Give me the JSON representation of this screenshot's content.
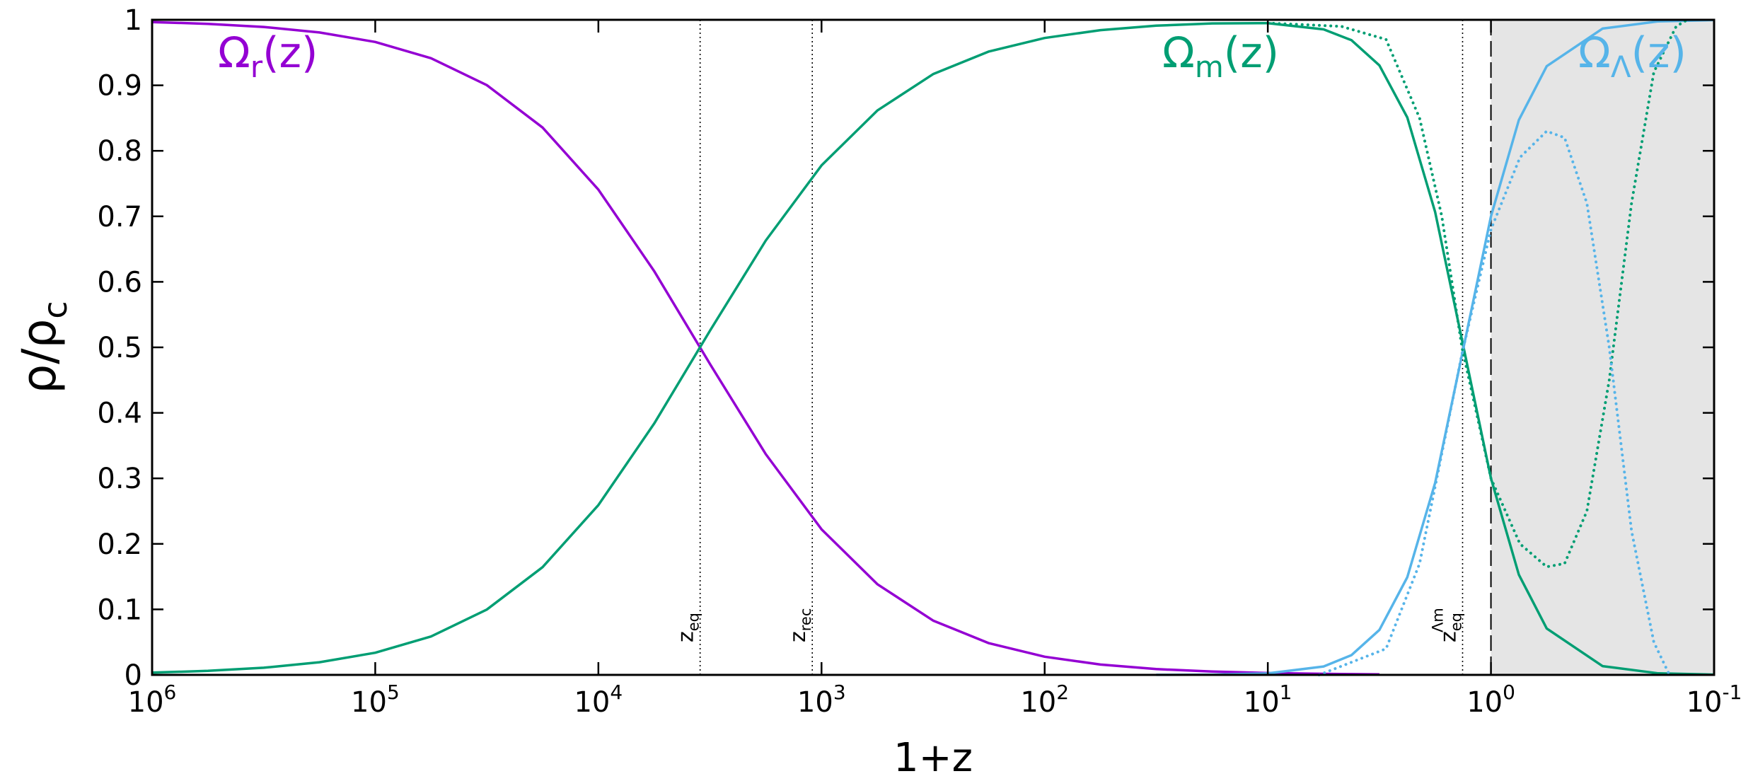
{
  "chart_data": {
    "type": "line",
    "x_label": "1+z",
    "y_label": {
      "main": "ρ/ρ",
      "sub": "c"
    },
    "xscale": "log",
    "xlim": [
      1000000,
      0.1
    ],
    "ylim": [
      0,
      1
    ],
    "xticks": [
      {
        "value": 1000000,
        "label": "10",
        "exp": "6"
      },
      {
        "value": 100000,
        "label": "10",
        "exp": "5"
      },
      {
        "value": 10000,
        "label": "10",
        "exp": "4"
      },
      {
        "value": 1000,
        "label": "10",
        "exp": "3"
      },
      {
        "value": 100,
        "label": "10",
        "exp": "2"
      },
      {
        "value": 10,
        "label": "10",
        "exp": "1"
      },
      {
        "value": 1,
        "label": "10",
        "exp": "0"
      },
      {
        "value": 0.1,
        "label": "10",
        "exp": "-1"
      }
    ],
    "yticks": [
      0,
      0.1,
      0.2,
      0.3,
      0.4,
      0.5,
      0.6,
      0.7,
      0.8,
      0.9,
      1
    ],
    "shade": [
      1,
      0.1
    ],
    "dashed_lines": [
      1
    ],
    "markers": [
      {
        "x": 3500,
        "label": "z",
        "sub": "eq"
      },
      {
        "x": 1100,
        "label": "z",
        "sub": "rec"
      },
      {
        "x": 1.34,
        "label": "z",
        "sub": "eq",
        "sup": "Λm"
      }
    ],
    "series": [
      {
        "label": {
          "main": "Ω",
          "sub": "r",
          "suffix": "(z)"
        },
        "color": "#9400d3",
        "style": "solid",
        "x": [
          1000000,
          562341,
          316228,
          177828,
          100000,
          56234,
          31623,
          17783,
          10000,
          5623,
          3162,
          1778,
          1000,
          562.3,
          316.2,
          177.8,
          100,
          56.23,
          31.62,
          17.78,
          10,
          5.623,
          4.217,
          3.162
        ],
        "values": [
          0.9965,
          0.9938,
          0.9891,
          0.9807,
          0.9662,
          0.9414,
          0.9003,
          0.8355,
          0.7407,
          0.6164,
          0.4746,
          0.3369,
          0.2222,
          0.1384,
          0.0829,
          0.0484,
          0.0278,
          0.0158,
          0.0089,
          0.0051,
          0.0028,
          0.0016,
          0.0012,
          0.0008
        ]
      },
      {
        "label": {
          "main": "Ω",
          "sub": "m",
          "suffix": "(z)"
        },
        "color": "#009e73",
        "style": "solid",
        "x": [
          1000000,
          562341,
          316228,
          177828,
          100000,
          56234,
          31623,
          17783,
          10000,
          5623,
          3162,
          1778,
          1000,
          562.3,
          316.2,
          177.8,
          100,
          56.23,
          31.62,
          17.78,
          10,
          5.623,
          4.217,
          3.162,
          2.371,
          1.778,
          1.334,
          1,
          0.7499,
          0.5623,
          0.3162,
          0.1778,
          0.1
        ],
        "values": [
          0.0035,
          0.0062,
          0.0109,
          0.0193,
          0.0338,
          0.0586,
          0.0997,
          0.1645,
          0.2593,
          0.3836,
          0.5254,
          0.6631,
          0.7778,
          0.8616,
          0.9171,
          0.9516,
          0.9722,
          0.9842,
          0.991,
          0.9945,
          0.9949,
          0.9854,
          0.9689,
          0.9305,
          0.851,
          0.7065,
          0.504,
          0.3,
          0.153,
          0.0708,
          0.0134,
          0.0024,
          0.0004
        ]
      },
      {
        "label": {
          "main": "Ω",
          "sub": "Λ",
          "suffix": "(z)"
        },
        "color": "#56b4e9",
        "style": "solid",
        "x": [
          31.62,
          17.78,
          10,
          5.623,
          4.217,
          3.162,
          2.371,
          1.778,
          1.334,
          1,
          0.7499,
          0.5623,
          0.3162,
          0.1778,
          0.1
        ],
        "values": [
          0.0001,
          0.0004,
          0.0023,
          0.0129,
          0.0301,
          0.0687,
          0.149,
          0.2932,
          0.496,
          0.7,
          0.847,
          0.9292,
          0.9866,
          0.9976,
          0.9996
        ]
      },
      {
        "color": "#009e73",
        "style": "dotted",
        "x": [
          10,
          4.677,
          2.951,
          2.089,
          1.66,
          1.349,
          1,
          0.7413,
          0.5623,
          0.4677,
          0.3715,
          0.2951,
          0.2344,
          0.1862,
          0.1479,
          0.1318
        ],
        "values": [
          0.995,
          0.99,
          0.97,
          0.85,
          0.7,
          0.5,
          0.3,
          0.2,
          0.165,
          0.17,
          0.25,
          0.45,
          0.72,
          0.92,
          0.99,
          1
        ]
      },
      {
        "color": "#56b4e9",
        "style": "dotted",
        "x": [
          5.888,
          2.951,
          2.089,
          1.349,
          1,
          0.7413,
          0.5623,
          0.4677,
          0.3715,
          0.2951,
          0.2344,
          0.1862,
          0.1585
        ],
        "values": [
          0,
          0.04,
          0.17,
          0.49,
          0.68,
          0.79,
          0.83,
          0.82,
          0.72,
          0.5,
          0.22,
          0.05,
          0
        ]
      }
    ]
  }
}
